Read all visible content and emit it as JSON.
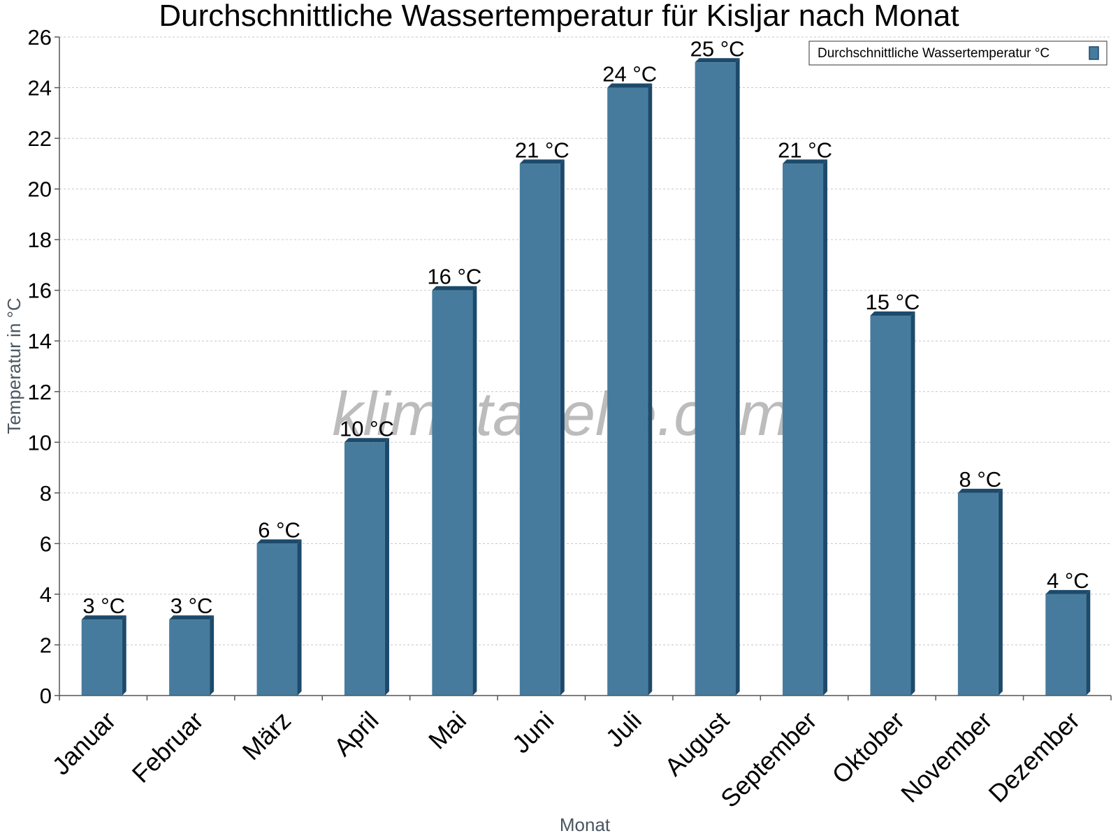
{
  "chart_data": {
    "type": "bar",
    "title": "Durchschnittliche Wassertemperatur für Kisljar nach Monat",
    "xlabel": "Monat",
    "ylabel": "Temperatur in °C",
    "categories": [
      "Januar",
      "Februar",
      "März",
      "April",
      "Mai",
      "Juni",
      "Juli",
      "August",
      "September",
      "Oktober",
      "November",
      "Dezember"
    ],
    "series": [
      {
        "name": "Durchschnittliche Wassertemperatur °C",
        "values": [
          3,
          3,
          6,
          10,
          16,
          21,
          24,
          25,
          21,
          15,
          8,
          4
        ],
        "value_labels": [
          "3 °C",
          "3 °C",
          "6 °C",
          "10 °C",
          "16 °C",
          "21 °C",
          "24 °C",
          "25 °C",
          "21 °C",
          "15 °C",
          "8 °C",
          "4 °C"
        ],
        "color": "#467b9d"
      }
    ],
    "ylim": [
      0,
      26
    ],
    "yticks": [
      0,
      2,
      4,
      6,
      8,
      10,
      12,
      14,
      16,
      18,
      20,
      22,
      24,
      26
    ],
    "grid": true,
    "legend_position": "top-right",
    "side_color": "#1d4a6b"
  },
  "watermark": "klimatabelle.com"
}
